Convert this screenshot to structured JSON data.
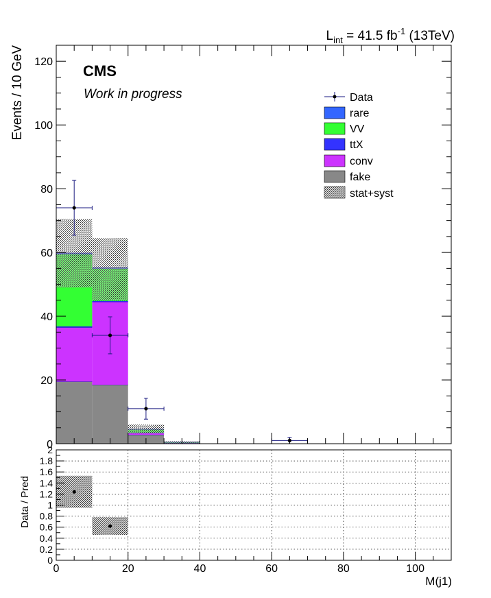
{
  "lumi_label": {
    "prefix": "L",
    "sub": "int",
    "mid": " = 41.5 fb",
    "sup": "-1",
    "suffix": " (13TeV)"
  },
  "cms_label": "CMS",
  "status_label": "Work in progress",
  "colors": {
    "rare": "#3366ff",
    "VV": "#33ff33",
    "ttX": "#3333ff",
    "conv": "#cc33ff",
    "fake": "#888888",
    "uncertainty": "#bbbbbb",
    "data": "#000000",
    "data_error": "#1a1a80"
  },
  "chart_data": [
    {
      "type": "bar",
      "subtype": "stacked-histogram",
      "title": "",
      "xlabel": "",
      "ylabel": "Events / 10 GeV",
      "xlim": [
        0,
        110
      ],
      "ylim": [
        0,
        125
      ],
      "y_ticks": [
        "0",
        "20",
        "40",
        "60",
        "80",
        "100",
        "120"
      ],
      "bin_edges": [
        0,
        10,
        20,
        30,
        40,
        50,
        60,
        70,
        80,
        90,
        100,
        110
      ],
      "series": [
        {
          "name": "fake",
          "values": [
            19.5,
            18.5,
            2.8,
            0.2,
            0,
            0,
            0,
            0,
            0,
            0,
            0
          ]
        },
        {
          "name": "conv",
          "values": [
            17.0,
            26.0,
            0.6,
            0.1,
            0,
            0,
            0,
            0,
            0,
            0,
            0
          ]
        },
        {
          "name": "ttX",
          "values": [
            0.3,
            0.3,
            0.1,
            0,
            0,
            0,
            0,
            0,
            0,
            0,
            0
          ]
        },
        {
          "name": "VV",
          "values": [
            22.7,
            10.2,
            1.0,
            0.2,
            0,
            0,
            0,
            0,
            0,
            0,
            0
          ]
        },
        {
          "name": "rare",
          "values": [
            0.3,
            0.2,
            0.1,
            0,
            0,
            0,
            0,
            0,
            0,
            0,
            0
          ]
        }
      ],
      "uncertainty_band": {
        "name": "stat+syst",
        "low": [
          49,
          45,
          3.2,
          0.1,
          0,
          0,
          0,
          0,
          0,
          0,
          0
        ],
        "high": [
          70.5,
          64.5,
          6.0,
          0.8,
          0,
          0,
          0,
          0,
          0,
          0,
          0
        ]
      },
      "data": {
        "name": "Data",
        "x": [
          5,
          15,
          25,
          65
        ],
        "y": [
          74,
          34,
          11,
          1
        ],
        "err_low": [
          8.6,
          5.8,
          3.3,
          1
        ],
        "err_high": [
          8.6,
          5.8,
          3.3,
          1
        ],
        "x_halfwidth": 5
      },
      "legend": {
        "placement": "top-right",
        "entries": [
          "Data",
          "rare",
          "VV",
          "ttX",
          "conv",
          "fake",
          "stat+syst"
        ]
      }
    },
    {
      "type": "scatter",
      "subtype": "ratio",
      "title": "",
      "xlabel": "M(j1)",
      "ylabel": "Data / Pred",
      "xlim": [
        0,
        110
      ],
      "ylim": [
        0,
        2
      ],
      "x_ticks": [
        "0",
        "20",
        "40",
        "60",
        "80",
        "100"
      ],
      "y_ticks": [
        "0",
        "0.2",
        "0.4",
        "0.6",
        "0.8",
        "1",
        "1.2",
        "1.4",
        "1.6",
        "1.8",
        "2"
      ],
      "grid": true,
      "points": {
        "x": [
          5,
          15
        ],
        "y": [
          1.24,
          0.62
        ]
      },
      "uncertainty_band": {
        "bin_edges": [
          [
            0,
            10
          ],
          [
            10,
            20
          ]
        ],
        "low": [
          0.95,
          0.46
        ],
        "high": [
          1.53,
          0.78
        ]
      }
    }
  ]
}
